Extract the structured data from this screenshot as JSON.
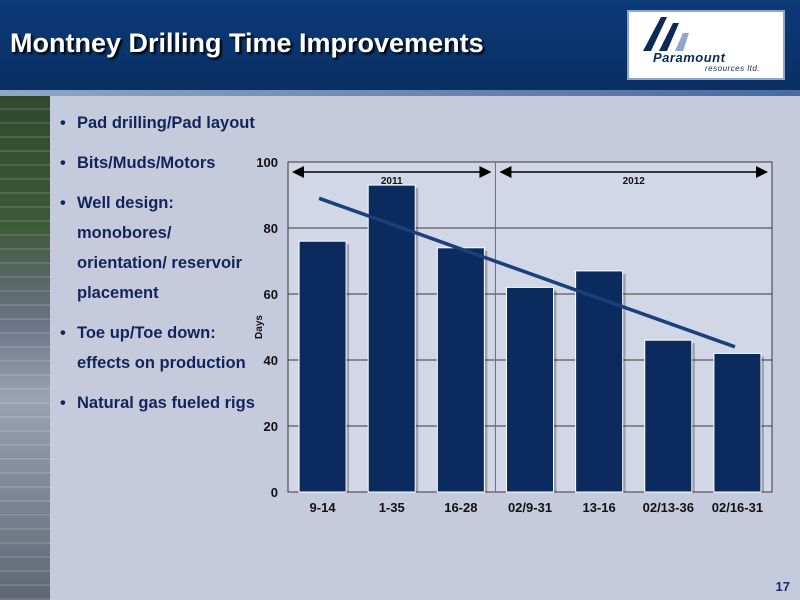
{
  "slide": {
    "title": "Montney Drilling Time Improvements",
    "page_number": "17",
    "bullets": [
      "Pad drilling/Pad layout",
      "Bits/Muds/Motors",
      "Well design: monobores/ orientation/ reservoir placement",
      "Toe up/Toe down: effects on production",
      "Natural gas fueled rigs"
    ]
  },
  "logo": {
    "name": "Paramount",
    "subtitle": "resources ltd."
  },
  "chart_data": {
    "type": "bar",
    "title": "",
    "xlabel": "",
    "ylabel": "Days",
    "categories": [
      "9-14",
      "1-35",
      "16-28",
      "02/9-31",
      "13-16",
      "02/13-36",
      "02/16-31"
    ],
    "values": [
      76,
      93,
      74,
      62,
      67,
      46,
      42
    ],
    "ylim": [
      0,
      100
    ],
    "yticks": [
      0,
      20,
      40,
      60,
      80,
      100
    ],
    "grid": true,
    "trendline": {
      "start": 89,
      "end": 44
    },
    "periods": [
      {
        "label": "2011",
        "from_category": 0,
        "to_category": 2
      },
      {
        "label": "2012",
        "from_category": 3,
        "to_category": 6
      }
    ],
    "colors": {
      "bar": "#0b2a5e",
      "trend": "#1b3f7a",
      "plot_bg": "#d2d7e7",
      "grid": "#3a3a3a"
    }
  }
}
